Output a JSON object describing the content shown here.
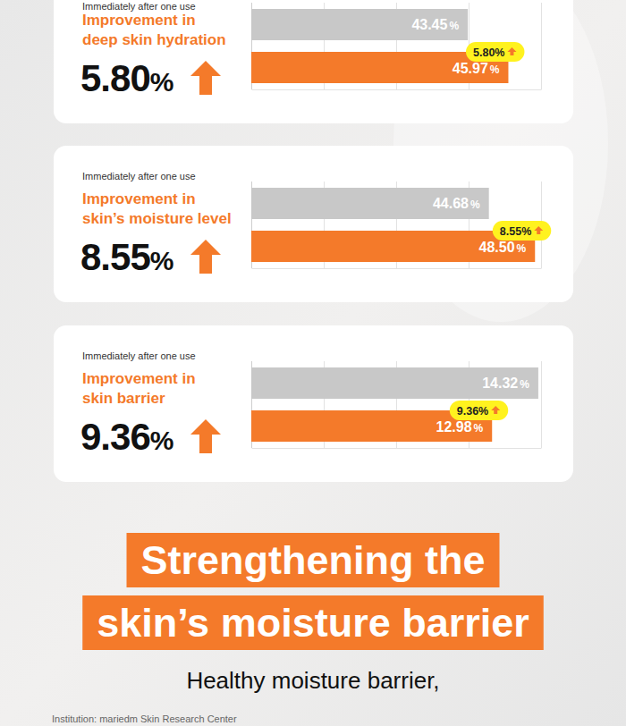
{
  "chart_data": [
    {
      "type": "bar",
      "orientation": "horizontal",
      "subtitle": "Immediately after one use",
      "title": "Improvement in\ndeep skin hydration",
      "change_label": "5.80%",
      "categories": [
        null,
        null
      ],
      "values": [
        43.45,
        45.97
      ],
      "value_labels": [
        "43.45%",
        "45.97%"
      ],
      "colors": [
        "#c8c8c8",
        "#f47a2a"
      ],
      "xlim": [
        30,
        48
      ],
      "xticks": [
        30,
        34.5,
        39,
        43.5,
        48
      ],
      "grid": true,
      "tick_labels": false,
      "data_labels": true
    },
    {
      "type": "bar",
      "orientation": "horizontal",
      "subtitle": "Immediately after one use",
      "title": "Improvement in\nskin’s moisture level",
      "change_label": "8.55%",
      "categories": [
        null,
        null
      ],
      "values": [
        44.68,
        48.5
      ],
      "value_labels": [
        "44.68%",
        "48.50%"
      ],
      "colors": [
        "#c8c8c8",
        "#f47a2a"
      ],
      "xlim": [
        25,
        49
      ],
      "xticks": [
        25,
        31,
        37,
        43,
        49
      ],
      "grid": true,
      "tick_labels": false,
      "data_labels": true
    },
    {
      "type": "bar",
      "orientation": "horizontal",
      "subtitle": "Immediately after one use",
      "title": "Improvement in\nskin barrier",
      "change_label": "9.36%",
      "categories": [
        null,
        null
      ],
      "values": [
        14.32,
        12.98
      ],
      "value_labels": [
        "14.32%",
        "12.98%"
      ],
      "colors": [
        "#c8c8c8",
        "#f47a2a"
      ],
      "xlim": [
        6,
        14.4
      ],
      "xticks": [
        6,
        8.1,
        10.2,
        12.3,
        14.4
      ],
      "grid": true,
      "tick_labels": false,
      "data_labels": true
    }
  ],
  "page": {
    "headline": [
      "Strengthening the",
      "skin’s moisture barrier"
    ],
    "tagline": "Healthy moisture barrier,",
    "footer": "Institution: mariedm Skin Research Center"
  }
}
